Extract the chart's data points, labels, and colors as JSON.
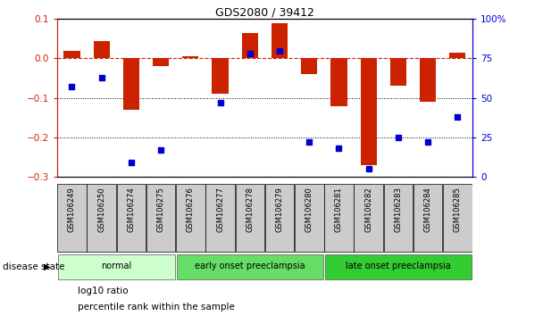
{
  "title": "GDS2080 / 39412",
  "samples": [
    "GSM106249",
    "GSM106250",
    "GSM106274",
    "GSM106275",
    "GSM106276",
    "GSM106277",
    "GSM106278",
    "GSM106279",
    "GSM106280",
    "GSM106281",
    "GSM106282",
    "GSM106283",
    "GSM106284",
    "GSM106285"
  ],
  "log10_ratio": [
    0.02,
    0.045,
    -0.13,
    -0.02,
    0.005,
    -0.09,
    0.065,
    0.09,
    -0.04,
    -0.12,
    -0.27,
    -0.07,
    -0.11,
    0.015
  ],
  "percentile_rank": [
    57,
    63,
    9,
    17,
    null,
    47,
    78,
    80,
    22,
    18,
    5,
    25,
    22,
    38
  ],
  "disease_groups": [
    {
      "label": "normal",
      "start": 0,
      "end": 4,
      "color": "#ccffcc"
    },
    {
      "label": "early onset preeclampsia",
      "start": 4,
      "end": 9,
      "color": "#66dd66"
    },
    {
      "label": "late onset preeclampsia",
      "start": 9,
      "end": 14,
      "color": "#33cc33"
    }
  ],
  "bar_color": "#cc2200",
  "dot_color": "#0000cc",
  "zero_line_color": "#cc2200",
  "ylim_left": [
    -0.3,
    0.1
  ],
  "ylim_right": [
    0,
    100
  ],
  "right_yticks": [
    0,
    25,
    50,
    75,
    100
  ],
  "right_yticklabels": [
    "0",
    "25",
    "50",
    "75",
    "100%"
  ],
  "left_yticks": [
    -0.3,
    -0.2,
    -0.1,
    0.0,
    0.1
  ],
  "disease_state_label": "disease state",
  "legend_log10": "log10 ratio",
  "legend_pct": "percentile rank within the sample",
  "bg_color": "#ffffff"
}
